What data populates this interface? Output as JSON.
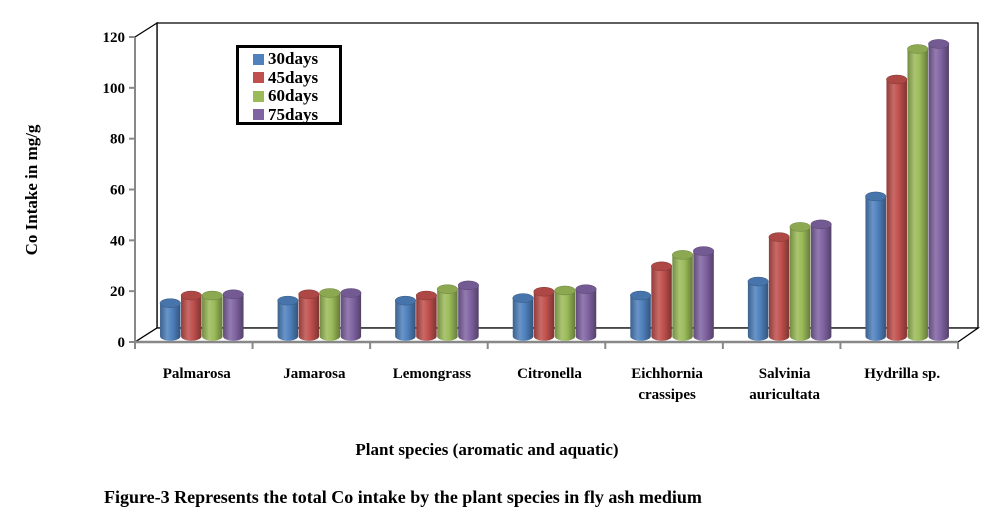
{
  "chart_data": {
    "type": "bar",
    "style": "3d-cylinder",
    "title": "",
    "xlabel": "Plant species (aromatic and aquatic)",
    "ylabel": "Co Intake in mg/g",
    "ylim": [
      0,
      120
    ],
    "yticks": [
      0,
      20,
      40,
      60,
      80,
      100,
      120
    ],
    "grid": false,
    "legend_position": "top-left",
    "categories": [
      [
        "Palmarosa"
      ],
      [
        "Jamarosa"
      ],
      [
        "Lemongrass"
      ],
      [
        "Citronella"
      ],
      [
        "Eichhornia",
        "crassipes"
      ],
      [
        "Salvinia",
        "auricultata"
      ],
      [
        "Hydrilla sp."
      ]
    ],
    "series": [
      {
        "name": "30days",
        "color": "#4f81bd",
        "values": [
          13,
          14,
          14,
          15,
          16,
          21.5,
          55
        ]
      },
      {
        "name": "45days",
        "color": "#c0504d",
        "values": [
          16,
          16.5,
          16,
          17.5,
          27.5,
          39,
          101
        ]
      },
      {
        "name": "60days",
        "color": "#9bbb59",
        "values": [
          16,
          17,
          18.5,
          18,
          32,
          43,
          113
        ]
      },
      {
        "name": "75days",
        "color": "#8064a2",
        "values": [
          16.5,
          17,
          20,
          18.5,
          33.5,
          44,
          115
        ]
      }
    ]
  },
  "caption": "Figure-3 Represents the total Co intake by the plant species in fly ash medium"
}
